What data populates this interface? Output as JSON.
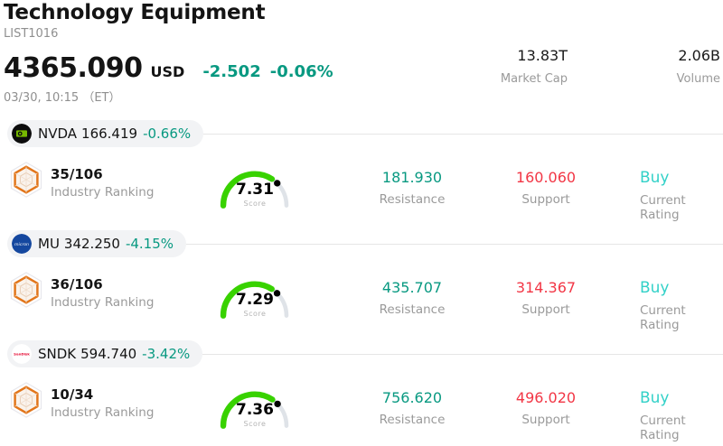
{
  "header": {
    "title": "Technology Equipment",
    "list_id": "LIST1016",
    "price": "4365.090",
    "currency": "USD",
    "change": "-2.502",
    "change_pct": "-0.06%",
    "timestamp": "03/30, 10:15 （ET）",
    "market_cap": {
      "value": "13.83T",
      "label": "Market Cap"
    },
    "volume": {
      "value": "2.06B",
      "label": "Volume"
    }
  },
  "labels": {
    "ranking": "Industry Ranking",
    "score": "Score",
    "resistance": "Resistance",
    "support": "Support",
    "rating": "Current Rating"
  },
  "rows": [
    {
      "ticker": "NVDA",
      "price": "166.419",
      "change_pct": "-0.66%",
      "logo": "nvidia-logo",
      "rank": "35/106",
      "score": 7.31,
      "resistance": "181.930",
      "support": "160.060",
      "rating": "Buy"
    },
    {
      "ticker": "MU",
      "price": "342.250",
      "change_pct": "-4.15%",
      "logo": "micron-logo",
      "rank": "36/106",
      "score": 7.29,
      "resistance": "435.707",
      "support": "314.367",
      "rating": "Buy"
    },
    {
      "ticker": "SNDK",
      "price": "594.740",
      "change_pct": "-3.42%",
      "logo": "sandisk-logo",
      "rank": "10/34",
      "score": 7.36,
      "resistance": "756.620",
      "support": "496.020",
      "rating": "Buy"
    }
  ],
  "colors": {
    "change_green": "#089981",
    "support_red": "#f23645",
    "rating_cyan": "#32d1c8",
    "gauge_green": "#38d200",
    "gauge_track": "#dfe3e8",
    "pill_bg": "#f2f3f5",
    "divider": "#e6e6e6",
    "nvidia_green": "#76b900",
    "micron_blue": "#15489f",
    "sandisk_red": "#e4002b"
  }
}
